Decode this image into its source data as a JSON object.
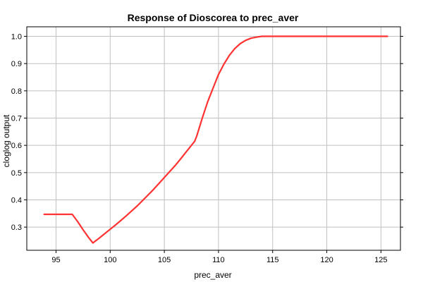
{
  "chart_data": {
    "type": "line",
    "title": "Response of Dioscorea to prec_aver",
    "xlabel": "prec_aver",
    "ylabel": "cloglog output",
    "xlim": [
      92.3,
      126.8
    ],
    "ylim": [
      0.215,
      1.035
    ],
    "xticks": [
      95,
      100,
      105,
      110,
      115,
      120,
      125
    ],
    "yticks": [
      0.3,
      0.4,
      0.5,
      0.6,
      0.7,
      0.8,
      0.9,
      1.0
    ],
    "grid": true,
    "color": "#ff3333",
    "series": [
      {
        "x": [
          93.9,
          94.5,
          95.5,
          96.5,
          97.0,
          97.5,
          98.0,
          98.4,
          99.0,
          99.5,
          100.0,
          100.5,
          101.0,
          101.5,
          102.0,
          102.5,
          103.0,
          103.5,
          104.0,
          104.5,
          105.0,
          105.5,
          106.0,
          106.5,
          107.0,
          107.5,
          107.8,
          108.0,
          108.5,
          109.0,
          109.5,
          110.0,
          110.5,
          111.0,
          111.5,
          112.0,
          112.5,
          113.0,
          113.5,
          114.0,
          114.5,
          115.0,
          116.0,
          118.0,
          120.0,
          122.0,
          124.0,
          125.6
        ],
        "values": [
          0.347,
          0.347,
          0.347,
          0.347,
          0.32,
          0.29,
          0.262,
          0.242,
          0.26,
          0.276,
          0.292,
          0.308,
          0.325,
          0.342,
          0.36,
          0.378,
          0.398,
          0.418,
          0.438,
          0.46,
          0.482,
          0.504,
          0.526,
          0.55,
          0.575,
          0.6,
          0.615,
          0.635,
          0.7,
          0.76,
          0.81,
          0.86,
          0.898,
          0.93,
          0.955,
          0.973,
          0.985,
          0.993,
          0.997,
          1.0,
          1.0,
          1.0,
          1.0,
          1.0,
          1.0,
          1.0,
          1.0,
          1.0
        ]
      }
    ]
  }
}
